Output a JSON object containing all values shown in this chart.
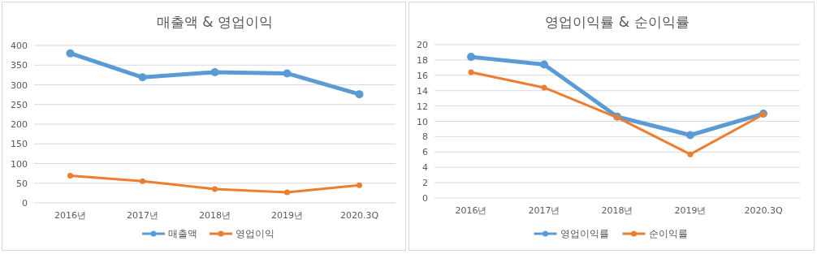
{
  "chart_data": [
    {
      "type": "line",
      "title": "매출액 & 영업이익",
      "categories": [
        "2016년",
        "2017년",
        "2018년",
        "2019년",
        "2020.3Q"
      ],
      "series": [
        {
          "name": "매출액",
          "color": "#5b9bd5",
          "values": [
            380,
            319,
            332,
            329,
            276
          ]
        },
        {
          "name": "영업이익",
          "color": "#ed7d31",
          "values": [
            69,
            55,
            35,
            27,
            45
          ]
        }
      ],
      "ylim": [
        0,
        400
      ],
      "yticks": [
        0,
        50,
        100,
        150,
        200,
        250,
        300,
        350,
        400
      ],
      "grid": "y",
      "legend": "bottom",
      "marker": "circle"
    },
    {
      "type": "line",
      "title": "영업이익률 & 순이익률",
      "categories": [
        "2016년",
        "2017년",
        "2018년",
        "2019년",
        "2020.3Q"
      ],
      "series": [
        {
          "name": "영업이익률",
          "color": "#5b9bd5",
          "values": [
            18.4,
            17.4,
            10.6,
            8.2,
            11.0
          ]
        },
        {
          "name": "순이익률",
          "color": "#ed7d31",
          "values": [
            16.4,
            14.4,
            10.5,
            5.7,
            10.9
          ]
        }
      ],
      "ylim": [
        0,
        20
      ],
      "yticks": [
        0,
        2,
        4,
        6,
        8,
        10,
        12,
        14,
        16,
        18,
        20
      ],
      "grid": "y",
      "legend": "bottom",
      "marker": "circle"
    }
  ]
}
